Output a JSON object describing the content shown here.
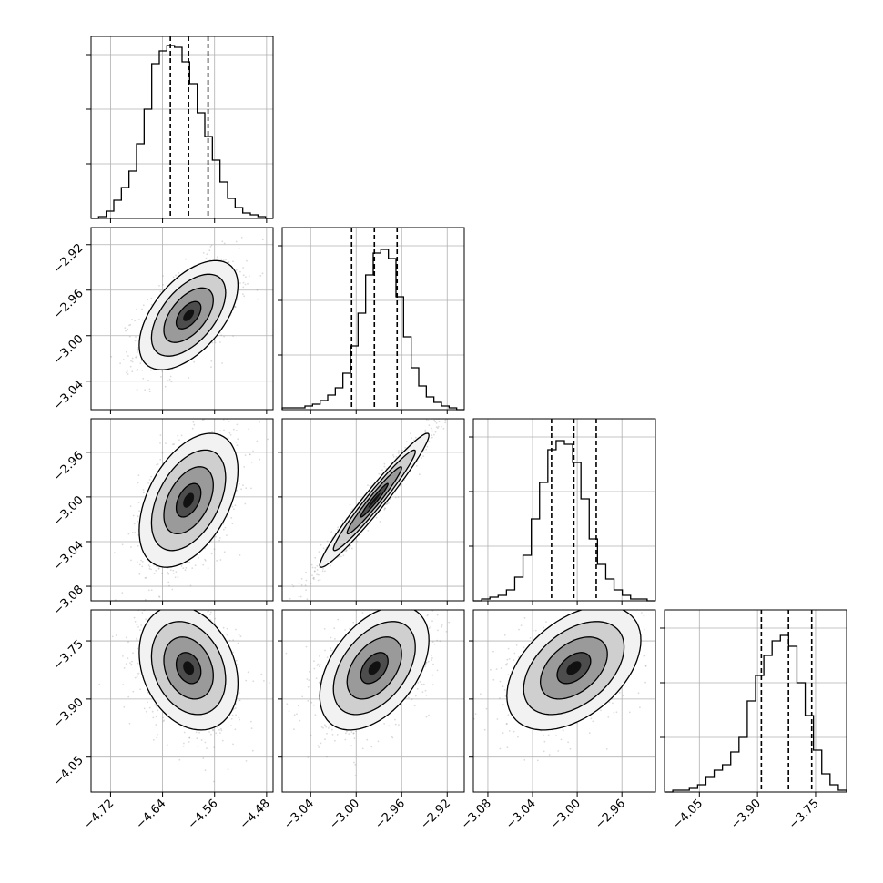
{
  "chart_data": {
    "type": "corner",
    "grid": true,
    "params": [
      {
        "index": 0,
        "ticks": [
          -4.72,
          -4.64,
          -4.56,
          -4.48
        ],
        "tick_labels": [
          "−4.72",
          "−4.64",
          "−4.56",
          "−4.48"
        ],
        "range": [
          -4.75,
          -4.47
        ],
        "quantiles": [
          -4.628,
          -4.6,
          -4.57
        ]
      },
      {
        "index": 1,
        "ticks": [
          -3.04,
          -3.0,
          -2.96,
          -2.92
        ],
        "tick_labels": [
          "−3.04",
          "−3.00",
          "−2.96",
          "−2.92"
        ],
        "range": [
          -3.065,
          -2.905
        ],
        "quantiles": [
          -3.004,
          -2.984,
          -2.964
        ]
      },
      {
        "index": 2,
        "ticks": [
          -3.08,
          -3.04,
          -3.0,
          -2.96
        ],
        "tick_labels": [
          "−3.08",
          "−3.04",
          "−3.00",
          "−2.96"
        ],
        "range": [
          -3.093,
          -2.93
        ],
        "quantiles": [
          -3.023,
          -3.003,
          -2.983
        ]
      },
      {
        "index": 3,
        "ticks": [
          -4.05,
          -3.9,
          -3.75
        ],
        "tick_labels": [
          "−4.05",
          "−3.90",
          "−3.75"
        ],
        "range": [
          -4.14,
          -3.67
        ],
        "quantiles": [
          -3.89,
          -3.82,
          -3.76
        ]
      }
    ],
    "hist_ticks_y": [
      0.0,
      0.3,
      0.6,
      0.9
    ],
    "histograms": [
      {
        "param": 0,
        "edges_range": [
          -4.75,
          -4.47
        ],
        "values": [
          0.0,
          0.01,
          0.04,
          0.1,
          0.17,
          0.26,
          0.41,
          0.6,
          0.85,
          0.92,
          0.95,
          0.94,
          0.86,
          0.74,
          0.58,
          0.45,
          0.32,
          0.2,
          0.11,
          0.06,
          0.03,
          0.02,
          0.01,
          0.0
        ]
      },
      {
        "param": 1,
        "edges_range": [
          -3.065,
          -2.905
        ],
        "values": [
          0.01,
          0.01,
          0.01,
          0.02,
          0.03,
          0.05,
          0.08,
          0.12,
          0.2,
          0.35,
          0.53,
          0.74,
          0.86,
          0.88,
          0.83,
          0.62,
          0.4,
          0.23,
          0.13,
          0.07,
          0.04,
          0.02,
          0.01,
          0.0
        ]
      },
      {
        "param": 2,
        "edges_range": [
          -3.093,
          -2.93
        ],
        "values": [
          0.0,
          0.01,
          0.02,
          0.03,
          0.06,
          0.13,
          0.25,
          0.45,
          0.65,
          0.83,
          0.88,
          0.86,
          0.76,
          0.56,
          0.34,
          0.2,
          0.12,
          0.06,
          0.03,
          0.01,
          0.01,
          0.0
        ]
      },
      {
        "param": 3,
        "edges_range": [
          -4.14,
          -3.67
        ],
        "values": [
          0.0,
          0.01,
          0.01,
          0.02,
          0.04,
          0.08,
          0.12,
          0.15,
          0.22,
          0.3,
          0.5,
          0.64,
          0.75,
          0.83,
          0.86,
          0.8,
          0.6,
          0.42,
          0.23,
          0.1,
          0.04,
          0.01
        ]
      }
    ],
    "pairs": [
      {
        "x_param": 0,
        "y_param": 1,
        "center": [
          -4.6,
          -2.982
        ],
        "sigma": [
          0.038,
          0.024
        ],
        "rho": 0.55
      },
      {
        "x_param": 0,
        "y_param": 2,
        "center": [
          -4.6,
          -3.003
        ],
        "sigma": [
          0.038,
          0.03
        ],
        "rho": 0.45
      },
      {
        "x_param": 1,
        "y_param": 2,
        "center": [
          -2.984,
          -3.003
        ],
        "sigma": [
          0.024,
          0.03
        ],
        "rho": 0.97
      },
      {
        "x_param": 0,
        "y_param": 3,
        "center": [
          -4.6,
          -3.82
        ],
        "sigma": [
          0.038,
          0.08
        ],
        "rho": -0.25
      },
      {
        "x_param": 1,
        "y_param": 3,
        "center": [
          -2.984,
          -3.82
        ],
        "sigma": [
          0.024,
          0.08
        ],
        "rho": 0.45
      },
      {
        "x_param": 2,
        "y_param": 3,
        "center": [
          -3.003,
          -3.82
        ],
        "sigma": [
          0.03,
          0.08
        ],
        "rho": 0.45
      }
    ],
    "contour_levels_sigma": [
      0.5,
      1.0,
      1.5,
      2.0
    ],
    "colors": {
      "lines": "#000000",
      "grid": "#b0b0b0",
      "scatter": "#7f7f7f",
      "frame": "#000000"
    }
  }
}
